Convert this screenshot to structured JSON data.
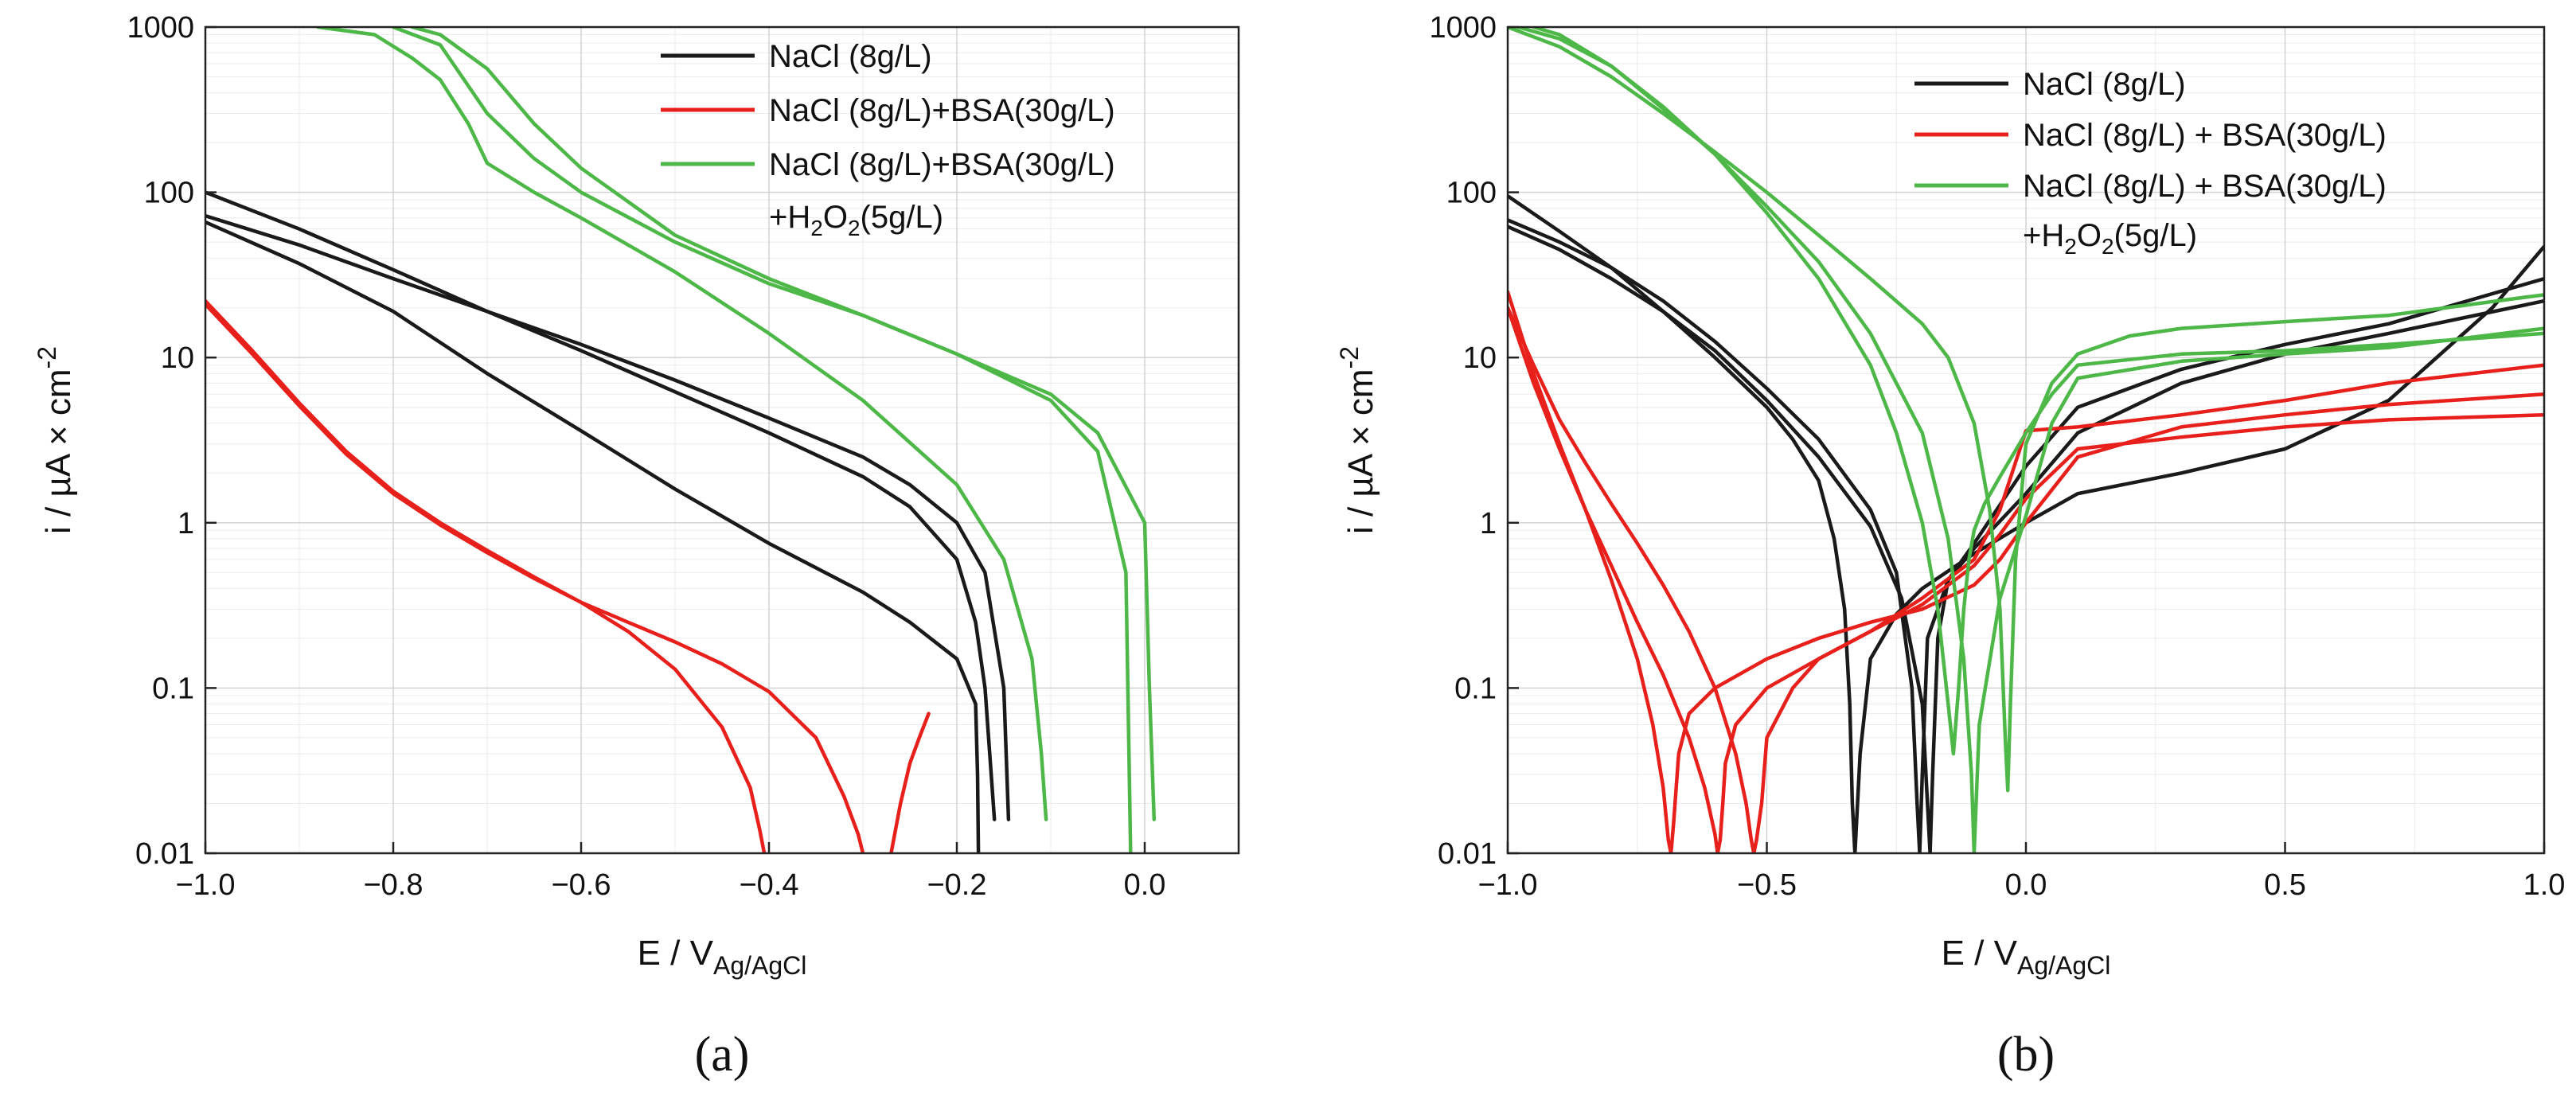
{
  "chart_data": [
    {
      "type": "line",
      "panel_label": "(a)",
      "xlabel": "E / V",
      "xlabel_sub": "Ag/AgCl",
      "ylabel": "i / µA × cm",
      "ylabel_sup": "-2",
      "yscale": "log",
      "xlim": [
        -1.0,
        0.1
      ],
      "ylim": [
        0.01,
        1000
      ],
      "x_ticks": [
        -1.0,
        -0.8,
        -0.6,
        -0.4,
        -0.2,
        0.0
      ],
      "x_tick_labels": [
        "−1.0",
        "−0.8",
        "−0.6",
        "−0.4",
        "−0.2",
        "0.0"
      ],
      "y_ticks": [
        0.01,
        0.1,
        1,
        10,
        100,
        1000
      ],
      "y_tick_labels": [
        "0.01",
        "0.1",
        "1",
        "10",
        "100",
        "1000"
      ],
      "grid": true,
      "legend_position": "top-right",
      "legend": [
        {
          "name": "NaCl (8g/L)",
          "color": "#1a1a1a"
        },
        {
          "name": "NaCl (8g/L)+BSA(30g/L)",
          "color": "#e8201c"
        },
        {
          "name": "NaCl (8g/L)+BSA(30g/L)",
          "line2_prefix": "+H",
          "line2_sub": "2",
          "line2_mid": "O",
          "line2_sub2": "2",
          "line2_suffix": "(5g/L)",
          "color": "#4db848"
        }
      ],
      "series": [
        {
          "name": "NaCl (8g/L)",
          "color": "#1a1a1a",
          "x": [
            -1.0,
            -0.9,
            -0.8,
            -0.7,
            -0.6,
            -0.5,
            -0.4,
            -0.3,
            -0.25,
            -0.2,
            -0.18,
            -0.17,
            -0.165,
            -0.16
          ],
          "y": [
            100,
            60,
            34,
            19,
            11,
            6.2,
            3.5,
            1.9,
            1.25,
            0.6,
            0.25,
            0.1,
            0.04,
            0.016
          ]
        },
        {
          "name": "NaCl (8g/L)",
          "color": "#1a1a1a",
          "x": [
            -1.0,
            -0.9,
            -0.8,
            -0.7,
            -0.6,
            -0.5,
            -0.4,
            -0.3,
            -0.25,
            -0.2,
            -0.17,
            -0.15,
            -0.145
          ],
          "y": [
            72,
            48,
            30,
            19,
            12,
            7.3,
            4.3,
            2.5,
            1.7,
            1.0,
            0.5,
            0.1,
            0.016
          ]
        },
        {
          "name": "NaCl (8g/L)",
          "color": "#1a1a1a",
          "x": [
            -1.0,
            -0.9,
            -0.8,
            -0.7,
            -0.6,
            -0.5,
            -0.4,
            -0.3,
            -0.25,
            -0.2,
            -0.18,
            -0.178,
            -0.177
          ],
          "y": [
            66,
            37,
            19,
            8,
            3.6,
            1.6,
            0.75,
            0.38,
            0.25,
            0.15,
            0.08,
            0.03,
            0.01
          ]
        },
        {
          "name": "NaCl (8g/L)+BSA(30g/L)",
          "color": "#e8201c",
          "x": [
            -1.0,
            -0.95,
            -0.9,
            -0.85,
            -0.8,
            -0.75,
            -0.7,
            -0.65,
            -0.6,
            -0.55,
            -0.5,
            -0.45,
            -0.42,
            -0.41,
            -0.405
          ],
          "y": [
            22,
            11,
            5.3,
            2.7,
            1.55,
            1.0,
            0.68,
            0.47,
            0.33,
            0.22,
            0.13,
            0.058,
            0.025,
            0.014,
            0.01
          ]
        },
        {
          "name": "NaCl (8g/L)+BSA(30g/L)",
          "color": "#e8201c",
          "x": [
            -1.0,
            -0.95,
            -0.9,
            -0.85,
            -0.8,
            -0.75,
            -0.7,
            -0.65,
            -0.6,
            -0.55,
            -0.5,
            -0.45,
            -0.4,
            -0.35,
            -0.32,
            -0.305,
            -0.3
          ],
          "y": [
            21,
            10.5,
            5.1,
            2.6,
            1.5,
            0.97,
            0.66,
            0.46,
            0.33,
            0.25,
            0.19,
            0.14,
            0.095,
            0.05,
            0.022,
            0.013,
            0.01
          ]
        },
        {
          "name": "NaCl (8g/L)+BSA(30g/L)",
          "color": "#e8201c",
          "x": [
            -0.27,
            -0.26,
            -0.25,
            -0.24,
            -0.23
          ],
          "y": [
            0.01,
            0.02,
            0.035,
            0.05,
            0.07
          ]
        },
        {
          "name": "NaCl (8g/L)+BSA(30g/L)+H2O2(5g/L)",
          "color": "#4db848",
          "x": [
            -0.88,
            -0.82,
            -0.78,
            -0.75,
            -0.72,
            -0.7,
            -0.65,
            -0.6,
            -0.5,
            -0.4,
            -0.3,
            -0.2,
            -0.15,
            -0.12,
            -0.11,
            -0.105
          ],
          "y": [
            1000,
            900,
            650,
            480,
            260,
            150,
            100,
            70,
            33,
            14,
            5.5,
            1.7,
            0.6,
            0.15,
            0.04,
            0.016
          ]
        },
        {
          "name": "NaCl (8g/L)+BSA(30g/L)+H2O2(5g/L)",
          "color": "#4db848",
          "x": [
            -0.8,
            -0.75,
            -0.7,
            -0.65,
            -0.6,
            -0.5,
            -0.4,
            -0.3,
            -0.2,
            -0.1,
            -0.05,
            -0.02,
            -0.015
          ],
          "y": [
            1000,
            780,
            300,
            160,
            100,
            50,
            28,
            18,
            10.5,
            5.5,
            2.7,
            0.5,
            0.01
          ]
        },
        {
          "name": "NaCl (8g/L)+BSA(30g/L)+H2O2(5g/L)",
          "color": "#4db848",
          "x": [
            -0.78,
            -0.75,
            -0.7,
            -0.65,
            -0.6,
            -0.5,
            -0.4,
            -0.3,
            -0.2,
            -0.1,
            -0.05,
            0.0,
            0.005,
            0.01
          ],
          "y": [
            1000,
            900,
            560,
            260,
            140,
            55,
            30,
            18,
            10.5,
            6,
            3.5,
            1.0,
            0.1,
            0.016
          ]
        }
      ]
    },
    {
      "type": "line",
      "panel_label": "(b)",
      "xlabel": "E / V",
      "xlabel_sub": "Ag/AgCl",
      "ylabel": "i / µA × cm",
      "ylabel_sup": "-2",
      "yscale": "log",
      "xlim": [
        -1.0,
        1.0
      ],
      "ylim": [
        0.01,
        1000
      ],
      "x_ticks": [
        -1.0,
        -0.5,
        0.0,
        0.5,
        1.0
      ],
      "x_tick_labels": [
        "−1.0",
        "−0.5",
        "0.0",
        "0.5",
        "1.0"
      ],
      "y_ticks": [
        0.01,
        0.1,
        1,
        10,
        100,
        1000
      ],
      "y_tick_labels": [
        "0.01",
        "0.1",
        "1",
        "10",
        "100",
        "1000"
      ],
      "grid": true,
      "legend_position": "top-right",
      "legend": [
        {
          "name": "NaCl (8g/L)",
          "color": "#1a1a1a"
        },
        {
          "name": "NaCl (8g/L) + BSA(30g/L)",
          "color": "#e8201c"
        },
        {
          "name": "NaCl (8g/L) + BSA(30g/L)",
          "line2_prefix": "+H",
          "line2_sub": "2",
          "line2_mid": "O",
          "line2_sub2": "2",
          "line2_suffix": "(5g/L)",
          "color": "#4db848"
        }
      ],
      "series": [
        {
          "name": "NaCl (8g/L)",
          "color": "#1a1a1a",
          "x": [
            -1.0,
            -0.9,
            -0.8,
            -0.7,
            -0.6,
            -0.5,
            -0.45,
            -0.4,
            -0.37,
            -0.35,
            -0.34,
            -0.335,
            -0.33,
            -0.32,
            -0.3,
            -0.25,
            -0.2,
            -0.1,
            0.0,
            0.1,
            0.3,
            0.5,
            0.7,
            0.9,
            1.0
          ],
          "y": [
            95,
            58,
            35,
            19,
            10,
            5,
            3.2,
            1.8,
            0.8,
            0.3,
            0.08,
            0.02,
            0.01,
            0.04,
            0.15,
            0.28,
            0.4,
            0.65,
            1.0,
            1.5,
            2.0,
            2.8,
            5.5,
            20,
            47
          ]
        },
        {
          "name": "NaCl (8g/L)",
          "color": "#1a1a1a",
          "x": [
            -1.0,
            -0.9,
            -0.8,
            -0.7,
            -0.6,
            -0.5,
            -0.4,
            -0.3,
            -0.25,
            -0.22,
            -0.21,
            -0.205,
            -0.2,
            -0.19,
            -0.15,
            -0.1,
            0.0,
            0.1,
            0.3,
            0.5,
            0.7,
            1.0
          ],
          "y": [
            68,
            50,
            35,
            22,
            12.5,
            6.5,
            3.2,
            1.2,
            0.5,
            0.1,
            0.02,
            0.01,
            0.03,
            0.2,
            0.45,
            0.7,
            1.5,
            3.5,
            7,
            10.5,
            14,
            22
          ]
        },
        {
          "name": "NaCl (8g/L)",
          "color": "#1a1a1a",
          "x": [
            -1.0,
            -0.9,
            -0.8,
            -0.7,
            -0.6,
            -0.5,
            -0.4,
            -0.3,
            -0.24,
            -0.2,
            -0.19,
            -0.185,
            -0.18,
            -0.17,
            -0.15,
            -0.1,
            0.0,
            0.1,
            0.3,
            0.5,
            0.7,
            1.0
          ],
          "y": [
            62,
            45,
            30,
            19,
            11,
            5.5,
            2.5,
            0.95,
            0.35,
            0.08,
            0.02,
            0.01,
            0.03,
            0.2,
            0.45,
            0.75,
            2.2,
            5,
            8.5,
            12,
            16,
            30
          ]
        },
        {
          "name": "NaCl (8g/L)+BSA(30g/L)",
          "color": "#e8201c",
          "x": [
            -1.0,
            -0.95,
            -0.9,
            -0.85,
            -0.8,
            -0.75,
            -0.72,
            -0.7,
            -0.69,
            -0.685,
            -0.68,
            -0.67,
            -0.65,
            -0.6,
            -0.5,
            -0.4,
            -0.3,
            -0.2,
            -0.1,
            -0.05,
            0.0,
            0.1,
            0.3,
            0.5,
            0.7,
            1.0
          ],
          "y": [
            25,
            8,
            3,
            1.2,
            0.45,
            0.15,
            0.06,
            0.025,
            0.012,
            0.01,
            0.015,
            0.04,
            0.07,
            0.1,
            0.15,
            0.2,
            0.25,
            0.3,
            0.42,
            0.6,
            1.0,
            2.5,
            3.8,
            4.5,
            5.2,
            6
          ]
        },
        {
          "name": "NaCl (8g/L)+BSA(30g/L)",
          "color": "#e8201c",
          "x": [
            -1.0,
            -0.95,
            -0.9,
            -0.85,
            -0.8,
            -0.75,
            -0.7,
            -0.65,
            -0.62,
            -0.6,
            -0.595,
            -0.59,
            -0.585,
            -0.58,
            -0.56,
            -0.5,
            -0.4,
            -0.3,
            -0.2,
            -0.1,
            -0.05,
            0.0,
            0.1,
            0.3,
            0.5,
            0.7,
            1.0
          ],
          "y": [
            20,
            7,
            2.8,
            1.2,
            0.55,
            0.25,
            0.12,
            0.05,
            0.025,
            0.013,
            0.01,
            0.012,
            0.02,
            0.035,
            0.06,
            0.1,
            0.15,
            0.22,
            0.32,
            0.55,
            0.85,
            1.4,
            2.8,
            3.3,
            3.8,
            4.2,
            4.5
          ]
        },
        {
          "name": "NaCl (8g/L)+BSA(30g/L)",
          "color": "#e8201c",
          "x": [
            -1.0,
            -0.95,
            -0.9,
            -0.85,
            -0.8,
            -0.75,
            -0.7,
            -0.65,
            -0.6,
            -0.56,
            -0.54,
            -0.53,
            -0.525,
            -0.52,
            -0.51,
            -0.5,
            -0.45,
            -0.4,
            -0.3,
            -0.2,
            -0.1,
            -0.05,
            0.0,
            0.1,
            0.3,
            0.5,
            0.7,
            1.0
          ],
          "y": [
            20,
            9,
            4.2,
            2.3,
            1.3,
            0.75,
            0.42,
            0.22,
            0.1,
            0.04,
            0.02,
            0.012,
            0.01,
            0.012,
            0.02,
            0.05,
            0.1,
            0.15,
            0.22,
            0.35,
            0.6,
            1.2,
            3.6,
            3.8,
            4.5,
            5.5,
            7,
            9
          ]
        },
        {
          "name": "NaCl (8g/L)+BSA(30g/L)+H2O2(5g/L)",
          "color": "#4db848",
          "x": [
            -0.98,
            -0.9,
            -0.8,
            -0.7,
            -0.6,
            -0.5,
            -0.4,
            -0.3,
            -0.25,
            -0.2,
            -0.17,
            -0.15,
            -0.14,
            -0.13,
            -0.12,
            -0.11,
            -0.1,
            -0.08,
            -0.05,
            0.0,
            0.05,
            0.1,
            0.3,
            0.5,
            0.7,
            1.0
          ],
          "y": [
            1000,
            850,
            580,
            330,
            170,
            75,
            30,
            9,
            3.5,
            1.0,
            0.3,
            0.08,
            0.04,
            0.1,
            0.3,
            0.6,
            0.9,
            1.3,
            1.9,
            3.5,
            6,
            9,
            10.5,
            11,
            12,
            14
          ]
        },
        {
          "name": "NaCl (8g/L)+BSA(30g/L)+H2O2(5g/L)",
          "color": "#4db848",
          "x": [
            -0.95,
            -0.9,
            -0.8,
            -0.7,
            -0.6,
            -0.5,
            -0.4,
            -0.3,
            -0.2,
            -0.15,
            -0.12,
            -0.105,
            -0.1,
            -0.09,
            -0.05,
            0.0,
            0.05,
            0.1,
            0.3,
            0.5,
            0.7,
            1.0
          ],
          "y": [
            1000,
            900,
            580,
            320,
            170,
            82,
            38,
            14,
            3.5,
            0.8,
            0.15,
            0.03,
            0.01,
            0.06,
            0.35,
            1.1,
            4,
            7.5,
            9.5,
            10.5,
            11.5,
            15
          ]
        },
        {
          "name": "NaCl (8g/L)+BSA(30g/L)+H2O2(5g/L)",
          "color": "#4db848",
          "x": [
            -1.0,
            -0.9,
            -0.8,
            -0.7,
            -0.6,
            -0.5,
            -0.4,
            -0.3,
            -0.2,
            -0.15,
            -0.1,
            -0.07,
            -0.05,
            -0.04,
            -0.035,
            -0.03,
            -0.02,
            0.0,
            0.05,
            0.1,
            0.2,
            0.3,
            0.5,
            0.7,
            1.0
          ],
          "y": [
            1000,
            760,
            500,
            300,
            175,
            100,
            55,
            30,
            16,
            10,
            4,
            1.2,
            0.3,
            0.05,
            0.024,
            0.08,
            0.6,
            3,
            7,
            10.5,
            13.5,
            15,
            16.5,
            18,
            24
          ]
        }
      ]
    }
  ]
}
